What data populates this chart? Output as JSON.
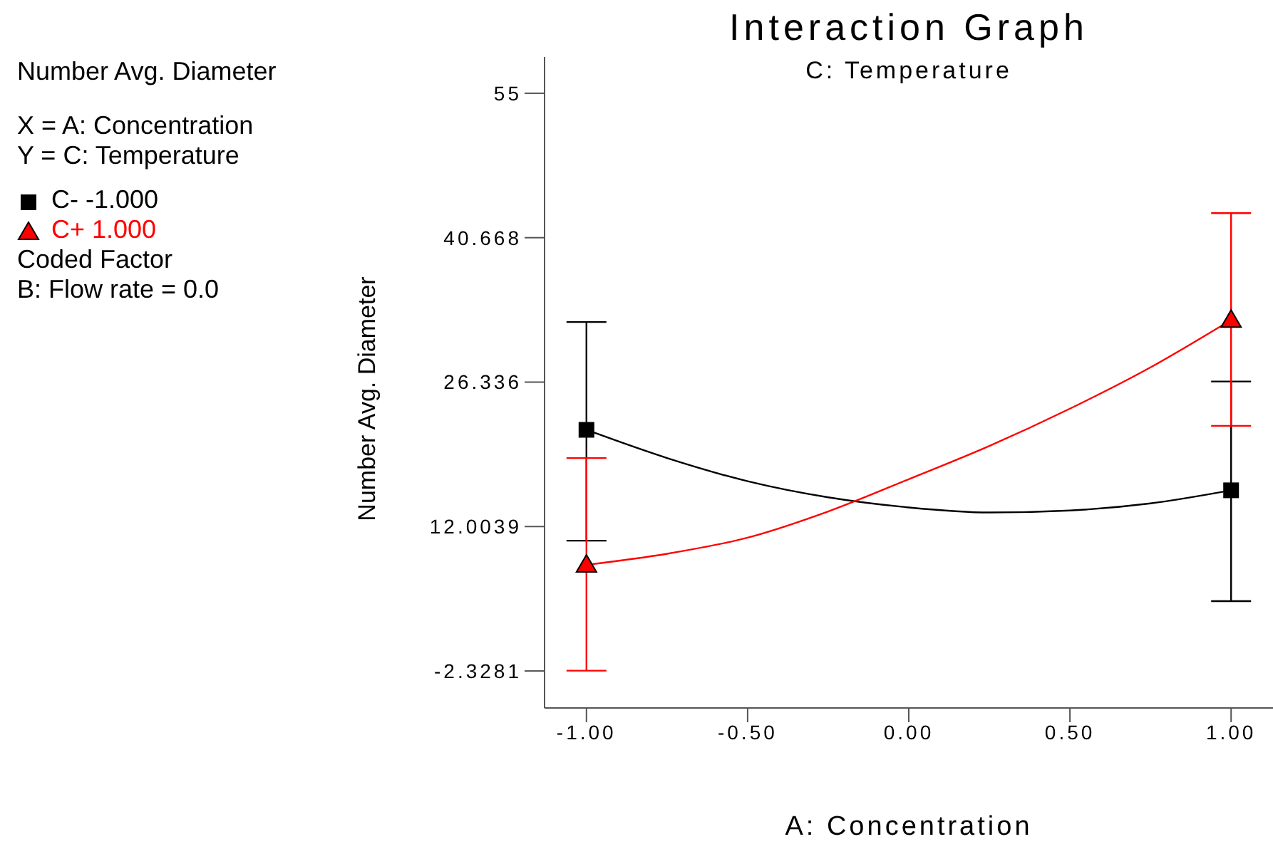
{
  "chart_data": {
    "type": "line",
    "title": "Interaction Graph",
    "subtitle": "C: Temperature",
    "xlabel": "A: Concentration",
    "ylabel": "Number Avg. Diameter",
    "annotations": [
      "Number Avg. Diameter",
      "X = A: Concentration",
      "Y = C: Temperature",
      "Coded Factor",
      "B: Flow rate = 0.0"
    ],
    "series": [
      {
        "name": "C- -1.000",
        "type": "scatter",
        "color": "#000000",
        "marker": "square",
        "x": [
          -1,
          1
        ],
        "values": [
          21.6,
          15.6
        ],
        "errors": [
          [
            10.6,
            32.3
          ],
          [
            4.6,
            26.4
          ]
        ]
      },
      {
        "name": "C+ 1.000",
        "type": "scatter",
        "color": "#ff0000",
        "marker": "triangle",
        "x": [
          -1,
          1
        ],
        "values": [
          8.2,
          32.5
        ],
        "errors": [
          [
            -2.3,
            18.8
          ],
          [
            22.0,
            43.1
          ]
        ]
      },
      {
        "color": "#000000",
        "marker": "none",
        "x": [
          -1,
          -0.75,
          -0.5,
          -0.25,
          0,
          0.25,
          0.5,
          0.75,
          1
        ],
        "values": [
          21.6,
          18.8,
          16.5,
          14.9,
          13.9,
          13.4,
          13.6,
          14.3,
          15.6
        ]
      },
      {
        "color": "#ff0000",
        "marker": "none",
        "x": [
          -1,
          -0.75,
          -0.5,
          -0.25,
          0,
          0.25,
          0.5,
          0.75,
          1
        ],
        "values": [
          8.2,
          9.3,
          10.9,
          13.5,
          16.7,
          20.0,
          23.7,
          27.8,
          32.5
        ]
      }
    ],
    "xlim": [
      -1.13,
      1.13
    ],
    "xticks": [
      {
        "value": -1,
        "label": "-1.00"
      },
      {
        "value": -0.5,
        "label": "-0.50"
      },
      {
        "value": 0,
        "label": "0.00"
      },
      {
        "value": 0.5,
        "label": "0.50"
      },
      {
        "value": 1,
        "label": "1.00"
      }
    ],
    "ylim": [
      -6.0,
      58.6
    ],
    "yticks": [
      -2.3281,
      12.0039,
      26.336,
      40.668,
      55
    ],
    "grid": false,
    "legend": "left"
  }
}
